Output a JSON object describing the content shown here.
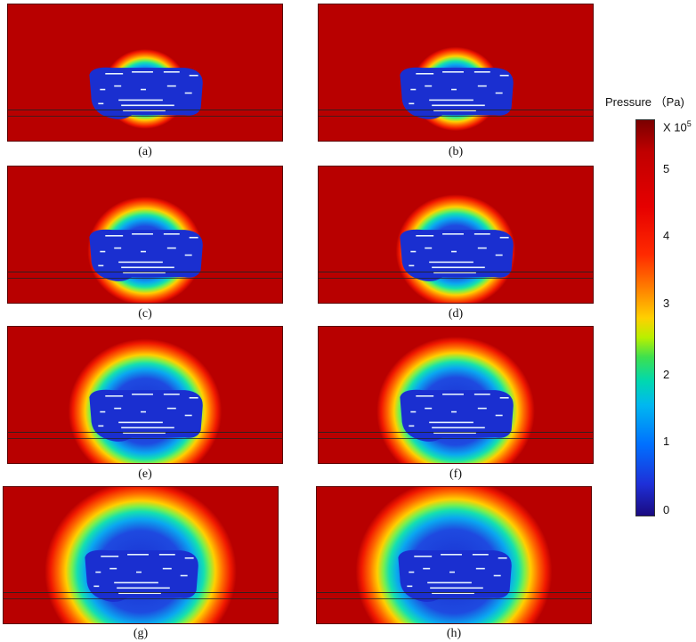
{
  "panels": [
    {
      "label": "(a)",
      "spread": 0.55
    },
    {
      "label": "(b)",
      "spread": 0.58
    },
    {
      "label": "(c)",
      "spread": 0.75
    },
    {
      "label": "(d)",
      "spread": 0.78
    },
    {
      "label": "(e)",
      "spread": 1.0
    },
    {
      "label": "(f)",
      "spread": 1.03
    },
    {
      "label": "(g)",
      "spread": 1.25
    },
    {
      "label": "(h)",
      "spread": 1.28
    }
  ],
  "colorbar": {
    "title": "Pressure （Pa)",
    "multiplier_prefix": "X 10",
    "multiplier_exp": "5",
    "ticks": [
      "5",
      "4",
      "3",
      "2",
      "1",
      "0"
    ],
    "range": [
      0,
      5.5
    ]
  },
  "colors": {
    "high": "#b80000",
    "low": "#1a2fd0"
  }
}
